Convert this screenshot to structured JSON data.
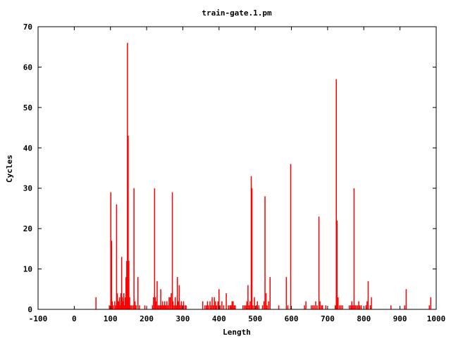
{
  "chart_data": {
    "type": "bar",
    "title": "train-gate.1.pm",
    "xlabel": "Length",
    "ylabel": "Cycles",
    "xlim": [
      -100,
      1000
    ],
    "ylim": [
      0,
      70
    ],
    "xticks": [
      -100,
      0,
      100,
      200,
      300,
      400,
      500,
      600,
      700,
      800,
      900,
      1000
    ],
    "yticks": [
      0,
      10,
      20,
      30,
      40,
      50,
      60,
      70
    ],
    "grid": false,
    "legend": "none",
    "bar_color": "#ff0000",
    "points": [
      {
        "x": 60,
        "y": 3
      },
      {
        "x": 97,
        "y": 1
      },
      {
        "x": 101,
        "y": 29
      },
      {
        "x": 103,
        "y": 17
      },
      {
        "x": 105,
        "y": 2
      },
      {
        "x": 108,
        "y": 1
      },
      {
        "x": 112,
        "y": 2
      },
      {
        "x": 115,
        "y": 1
      },
      {
        "x": 117,
        "y": 26
      },
      {
        "x": 119,
        "y": 4
      },
      {
        "x": 121,
        "y": 2
      },
      {
        "x": 123,
        "y": 2
      },
      {
        "x": 125,
        "y": 3
      },
      {
        "x": 127,
        "y": 1
      },
      {
        "x": 129,
        "y": 4
      },
      {
        "x": 131,
        "y": 13
      },
      {
        "x": 133,
        "y": 3
      },
      {
        "x": 135,
        "y": 2
      },
      {
        "x": 137,
        "y": 4
      },
      {
        "x": 139,
        "y": 1
      },
      {
        "x": 141,
        "y": 3
      },
      {
        "x": 143,
        "y": 8
      },
      {
        "x": 145,
        "y": 12
      },
      {
        "x": 147,
        "y": 66
      },
      {
        "x": 149,
        "y": 43
      },
      {
        "x": 151,
        "y": 12
      },
      {
        "x": 153,
        "y": 3
      },
      {
        "x": 155,
        "y": 1
      },
      {
        "x": 158,
        "y": 1
      },
      {
        "x": 162,
        "y": 1
      },
      {
        "x": 165,
        "y": 30
      },
      {
        "x": 168,
        "y": 2
      },
      {
        "x": 171,
        "y": 1
      },
      {
        "x": 176,
        "y": 8
      },
      {
        "x": 180,
        "y": 1
      },
      {
        "x": 195,
        "y": 1
      },
      {
        "x": 216,
        "y": 1
      },
      {
        "x": 219,
        "y": 3
      },
      {
        "x": 222,
        "y": 30
      },
      {
        "x": 224,
        "y": 3
      },
      {
        "x": 226,
        "y": 2
      },
      {
        "x": 229,
        "y": 7
      },
      {
        "x": 231,
        "y": 1
      },
      {
        "x": 234,
        "y": 1
      },
      {
        "x": 237,
        "y": 1
      },
      {
        "x": 239,
        "y": 5
      },
      {
        "x": 241,
        "y": 1
      },
      {
        "x": 244,
        "y": 2
      },
      {
        "x": 247,
        "y": 1
      },
      {
        "x": 250,
        "y": 2
      },
      {
        "x": 253,
        "y": 1
      },
      {
        "x": 256,
        "y": 2
      },
      {
        "x": 259,
        "y": 1
      },
      {
        "x": 262,
        "y": 3
      },
      {
        "x": 265,
        "y": 3
      },
      {
        "x": 268,
        "y": 4
      },
      {
        "x": 271,
        "y": 29
      },
      {
        "x": 273,
        "y": 2
      },
      {
        "x": 276,
        "y": 1
      },
      {
        "x": 279,
        "y": 3
      },
      {
        "x": 282,
        "y": 1
      },
      {
        "x": 285,
        "y": 8
      },
      {
        "x": 287,
        "y": 2
      },
      {
        "x": 290,
        "y": 6
      },
      {
        "x": 293,
        "y": 1
      },
      {
        "x": 296,
        "y": 2
      },
      {
        "x": 299,
        "y": 1
      },
      {
        "x": 302,
        "y": 2
      },
      {
        "x": 306,
        "y": 1
      },
      {
        "x": 309,
        "y": 1
      },
      {
        "x": 355,
        "y": 2
      },
      {
        "x": 361,
        "y": 1
      },
      {
        "x": 365,
        "y": 1
      },
      {
        "x": 368,
        "y": 2
      },
      {
        "x": 371,
        "y": 1
      },
      {
        "x": 375,
        "y": 2
      },
      {
        "x": 378,
        "y": 1
      },
      {
        "x": 381,
        "y": 3
      },
      {
        "x": 384,
        "y": 1
      },
      {
        "x": 387,
        "y": 3
      },
      {
        "x": 390,
        "y": 2
      },
      {
        "x": 393,
        "y": 1
      },
      {
        "x": 397,
        "y": 2
      },
      {
        "x": 400,
        "y": 5
      },
      {
        "x": 403,
        "y": 1
      },
      {
        "x": 408,
        "y": 2
      },
      {
        "x": 413,
        "y": 1
      },
      {
        "x": 420,
        "y": 4
      },
      {
        "x": 426,
        "y": 1
      },
      {
        "x": 430,
        "y": 1
      },
      {
        "x": 433,
        "y": 1
      },
      {
        "x": 436,
        "y": 2
      },
      {
        "x": 439,
        "y": 2
      },
      {
        "x": 442,
        "y": 1
      },
      {
        "x": 445,
        "y": 1
      },
      {
        "x": 466,
        "y": 1
      },
      {
        "x": 470,
        "y": 1
      },
      {
        "x": 474,
        "y": 1
      },
      {
        "x": 477,
        "y": 2
      },
      {
        "x": 480,
        "y": 6
      },
      {
        "x": 483,
        "y": 1
      },
      {
        "x": 486,
        "y": 2
      },
      {
        "x": 489,
        "y": 33
      },
      {
        "x": 491,
        "y": 30
      },
      {
        "x": 494,
        "y": 1
      },
      {
        "x": 498,
        "y": 3
      },
      {
        "x": 503,
        "y": 1
      },
      {
        "x": 506,
        "y": 2
      },
      {
        "x": 510,
        "y": 1
      },
      {
        "x": 520,
        "y": 1
      },
      {
        "x": 524,
        "y": 2
      },
      {
        "x": 527,
        "y": 28
      },
      {
        "x": 530,
        "y": 4
      },
      {
        "x": 533,
        "y": 1
      },
      {
        "x": 537,
        "y": 2
      },
      {
        "x": 541,
        "y": 8
      },
      {
        "x": 565,
        "y": 1
      },
      {
        "x": 586,
        "y": 8
      },
      {
        "x": 590,
        "y": 1
      },
      {
        "x": 598,
        "y": 36
      },
      {
        "x": 636,
        "y": 1
      },
      {
        "x": 640,
        "y": 2
      },
      {
        "x": 655,
        "y": 1
      },
      {
        "x": 659,
        "y": 1
      },
      {
        "x": 663,
        "y": 1
      },
      {
        "x": 667,
        "y": 2
      },
      {
        "x": 671,
        "y": 1
      },
      {
        "x": 676,
        "y": 23
      },
      {
        "x": 679,
        "y": 2
      },
      {
        "x": 683,
        "y": 1
      },
      {
        "x": 686,
        "y": 1
      },
      {
        "x": 695,
        "y": 1
      },
      {
        "x": 721,
        "y": 1
      },
      {
        "x": 724,
        "y": 57
      },
      {
        "x": 726,
        "y": 22
      },
      {
        "x": 729,
        "y": 3
      },
      {
        "x": 733,
        "y": 1
      },
      {
        "x": 737,
        "y": 1
      },
      {
        "x": 741,
        "y": 1
      },
      {
        "x": 760,
        "y": 1
      },
      {
        "x": 764,
        "y": 1
      },
      {
        "x": 767,
        "y": 2
      },
      {
        "x": 770,
        "y": 1
      },
      {
        "x": 773,
        "y": 30
      },
      {
        "x": 776,
        "y": 1
      },
      {
        "x": 779,
        "y": 1
      },
      {
        "x": 783,
        "y": 1
      },
      {
        "x": 786,
        "y": 2
      },
      {
        "x": 789,
        "y": 1
      },
      {
        "x": 793,
        "y": 1
      },
      {
        "x": 806,
        "y": 1
      },
      {
        "x": 809,
        "y": 2
      },
      {
        "x": 812,
        "y": 7
      },
      {
        "x": 818,
        "y": 1
      },
      {
        "x": 821,
        "y": 3
      },
      {
        "x": 875,
        "y": 1
      },
      {
        "x": 913,
        "y": 1
      },
      {
        "x": 917,
        "y": 5
      },
      {
        "x": 981,
        "y": 1
      },
      {
        "x": 985,
        "y": 3
      }
    ]
  }
}
